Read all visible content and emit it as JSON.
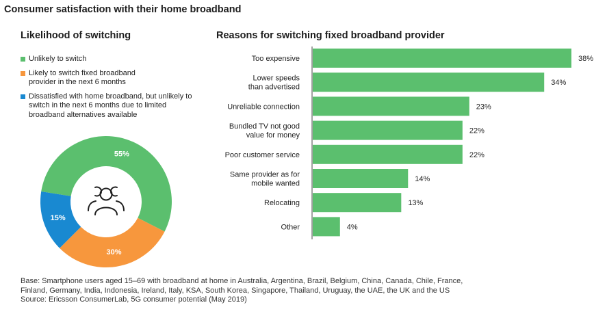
{
  "title": "Consumer satisfaction with their home broadband",
  "left_title": "Likelihood of switching",
  "right_title": "Reasons for switching fixed broadband provider",
  "legend": [
    {
      "label": "Unlikely to switch",
      "color": "#5bbf6e"
    },
    {
      "label": "Likely to switch fixed broadband provider in the next 6 months",
      "color": "#f7973d"
    },
    {
      "label": "Dissatisfied with home broadband, but unlikely to switch in the next 6 months due to limited broadband alternatives available",
      "color": "#1989d1"
    }
  ],
  "footnote": {
    "line1": "Base: Smartphone users aged 15–69 with broadband at home in Australia, Argentina, Brazil, Belgium, China, Canada, Chile, France,",
    "line2": "Finland, Germany, India, Indonesia, Ireland, Italy, KSA, South Korea, Singapore, Thailand, Uruguay, the UAE, the UK and the US",
    "line3": "Source: Ericsson ConsumerLab, 5G consumer potential (May 2019)"
  },
  "chart_data": [
    {
      "type": "pie",
      "title": "Likelihood of switching",
      "categories": [
        "Unlikely to switch",
        "Likely to switch fixed broadband provider in the next 6 months",
        "Dissatisfied with home broadband, but unlikely to switch in the next 6 months due to limited broadband alternatives available"
      ],
      "values": [
        55,
        30,
        15
      ],
      "labels": [
        "55%",
        "30%",
        "15%"
      ],
      "colors": [
        "#5bbf6e",
        "#f7973d",
        "#1989d1"
      ],
      "center_icon": "people-group-icon"
    },
    {
      "type": "bar",
      "orientation": "horizontal",
      "title": "Reasons for switching fixed broadband provider",
      "categories": [
        "Too expensive",
        "Lower speeds than advertised",
        "Unreliable connection",
        "Bundled TV not good value for money",
        "Poor customer service",
        "Same provider as for mobile wanted",
        "Relocating",
        "Other"
      ],
      "category_lines": [
        [
          "Too expensive"
        ],
        [
          "Lower speeds",
          "than advertised"
        ],
        [
          "Unreliable connection"
        ],
        [
          "Bundled TV not good",
          "value for money"
        ],
        [
          "Poor customer service"
        ],
        [
          "Same provider as for",
          "mobile wanted"
        ],
        [
          "Relocating"
        ],
        [
          "Other"
        ]
      ],
      "values": [
        38,
        34,
        23,
        22,
        22,
        14,
        13,
        4
      ],
      "labels": [
        "38%",
        "34%",
        "23%",
        "22%",
        "22%",
        "14%",
        "13%",
        "4%"
      ],
      "color": "#5bbf6e",
      "xlim": [
        0,
        38
      ]
    }
  ]
}
